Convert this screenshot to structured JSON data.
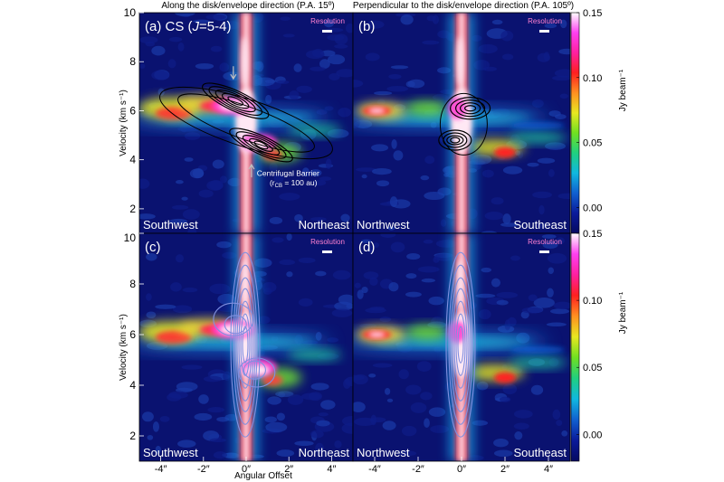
{
  "headers": {
    "left": "Along the disk/envelope direction (P.A. 15º)",
    "right": "Perpendicular to the disk/envelope direction (P.A. 105º)"
  },
  "resolution_label": "Resolution",
  "y_axis_label": "Velocity (km s⁻¹)",
  "x_axis_label": "Angular Offset",
  "colorbar_label": "Jy beam⁻¹",
  "annotations": {
    "centrifugal_barrier": "Centrifugal Barrier",
    "rcb": "(r",
    "rcb_sub": "CB",
    "rcb_rest": " = 100 au)"
  },
  "colors": {
    "background": "#0a1270",
    "emission_core": "#ffe8f4",
    "contour_black": "#000000",
    "contour_blue": "#8090e0",
    "corner_text": "#ffffff",
    "resolution_text": "#ff80d0"
  },
  "chart_data": [
    {
      "type": "heatmap",
      "panel": "a",
      "title_prefix": "(a) CS (",
      "title_italic": "J",
      "title_suffix": "=5-4)",
      "corner_left": "Southwest",
      "corner_right": "Northeast",
      "xlim": [
        -5,
        5
      ],
      "ylim": [
        1,
        10
      ],
      "contours": "black"
    },
    {
      "type": "heatmap",
      "panel": "b",
      "title_prefix": "(b)",
      "title_italic": "",
      "title_suffix": "",
      "corner_left": "Northwest",
      "corner_right": "Southeast",
      "xlim": [
        -5,
        5
      ],
      "ylim": [
        1,
        10
      ],
      "contours": "black"
    },
    {
      "type": "heatmap",
      "panel": "c",
      "title_prefix": "(c)",
      "title_italic": "",
      "title_suffix": "",
      "corner_left": "Southwest",
      "corner_right": "Northeast",
      "xlim": [
        -5,
        5
      ],
      "ylim": [
        1,
        10
      ],
      "contours": "blue"
    },
    {
      "type": "heatmap",
      "panel": "d",
      "title_prefix": "(d)",
      "title_italic": "",
      "title_suffix": "",
      "corner_left": "Northwest",
      "corner_right": "Southeast",
      "xlim": [
        -5,
        5
      ],
      "ylim": [
        1,
        10
      ],
      "contours": "blue"
    }
  ],
  "y_ticks": [
    "10",
    "8",
    "6",
    "4",
    "2"
  ],
  "y_ticks_bottom": [
    "10",
    "8",
    "6",
    "4",
    "2"
  ],
  "x_ticks": [
    "-4″",
    "-2″",
    "0″",
    "2″",
    "4″"
  ],
  "colorbar_ticks": [
    "0.15",
    "0.10",
    "0.05",
    "0.00"
  ],
  "colorbar_range": [
    -0.02,
    0.15
  ],
  "colorbar_stops": [
    "#050a60",
    "#0a1a9a",
    "#1060d0",
    "#10b8e0",
    "#20d080",
    "#70e020",
    "#e8e820",
    "#ff9020",
    "#ff2020",
    "#ff20a0",
    "#ff40f0",
    "#ffffff"
  ]
}
